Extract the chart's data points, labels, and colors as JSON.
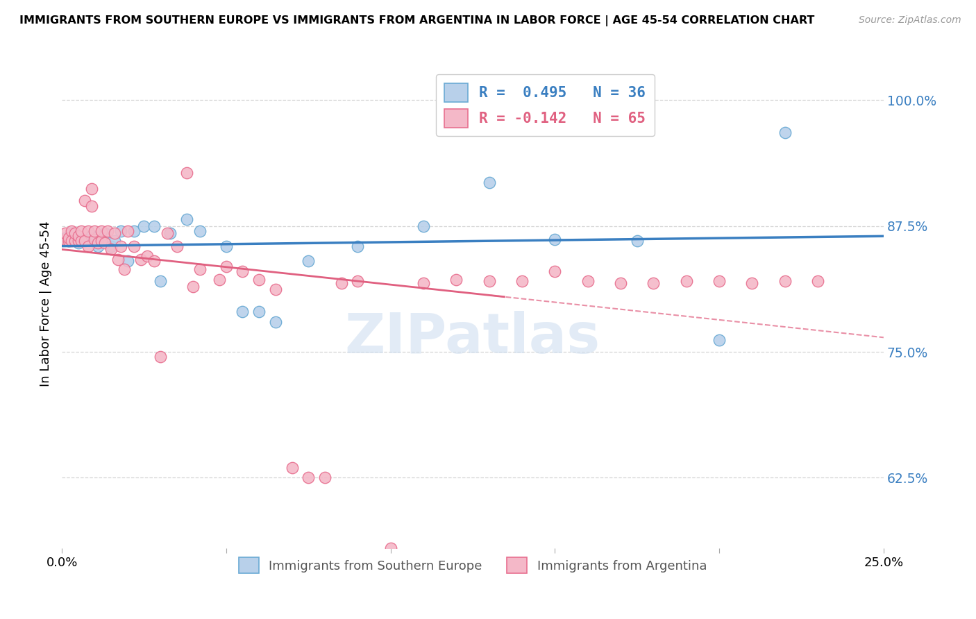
{
  "title": "IMMIGRANTS FROM SOUTHERN EUROPE VS IMMIGRANTS FROM ARGENTINA IN LABOR FORCE | AGE 45-54 CORRELATION CHART",
  "source": "Source: ZipAtlas.com",
  "ylabel": "In Labor Force | Age 45-54",
  "xlim": [
    0.0,
    0.25
  ],
  "ylim": [
    0.555,
    1.04
  ],
  "yticks": [
    0.625,
    0.75,
    0.875,
    1.0
  ],
  "ytick_labels": [
    "62.5%",
    "75.0%",
    "87.5%",
    "100.0%"
  ],
  "xticks": [
    0.0,
    0.05,
    0.1,
    0.15,
    0.2,
    0.25
  ],
  "xtick_labels": [
    "0.0%",
    "",
    "",
    "",
    "",
    "25.0%"
  ],
  "legend_blue_R": "R =  0.495",
  "legend_blue_N": "N = 36",
  "legend_pink_R": "R = -0.142",
  "legend_pink_N": "N = 65",
  "blue_fill_color": "#b8d0ea",
  "pink_fill_color": "#f4b8c8",
  "blue_edge_color": "#6aaad4",
  "pink_edge_color": "#e87090",
  "blue_line_color": "#3a7fc1",
  "pink_line_color": "#e06080",
  "watermark_color": "#d0dff0",
  "blue_scatter_x": [
    0.001,
    0.002,
    0.003,
    0.004,
    0.005,
    0.006,
    0.007,
    0.008,
    0.009,
    0.01,
    0.011,
    0.012,
    0.013,
    0.015,
    0.016,
    0.018,
    0.02,
    0.022,
    0.025,
    0.028,
    0.03,
    0.033,
    0.038,
    0.042,
    0.05,
    0.055,
    0.06,
    0.065,
    0.075,
    0.09,
    0.11,
    0.13,
    0.15,
    0.175,
    0.2,
    0.22
  ],
  "blue_scatter_y": [
    0.863,
    0.86,
    0.868,
    0.862,
    0.858,
    0.862,
    0.86,
    0.862,
    0.865,
    0.863,
    0.855,
    0.865,
    0.868,
    0.855,
    0.86,
    0.87,
    0.84,
    0.87,
    0.875,
    0.875,
    0.82,
    0.868,
    0.882,
    0.87,
    0.855,
    0.79,
    0.79,
    0.78,
    0.84,
    0.855,
    0.875,
    0.918,
    0.862,
    0.86,
    0.762,
    0.968
  ],
  "pink_scatter_x": [
    0.001,
    0.001,
    0.002,
    0.002,
    0.003,
    0.003,
    0.004,
    0.004,
    0.005,
    0.005,
    0.006,
    0.006,
    0.007,
    0.007,
    0.008,
    0.008,
    0.009,
    0.009,
    0.01,
    0.01,
    0.011,
    0.012,
    0.012,
    0.013,
    0.014,
    0.015,
    0.016,
    0.017,
    0.018,
    0.019,
    0.02,
    0.022,
    0.024,
    0.026,
    0.028,
    0.03,
    0.032,
    0.035,
    0.038,
    0.04,
    0.042,
    0.048,
    0.05,
    0.055,
    0.06,
    0.065,
    0.07,
    0.075,
    0.08,
    0.085,
    0.09,
    0.1,
    0.11,
    0.12,
    0.13,
    0.14,
    0.15,
    0.16,
    0.17,
    0.18,
    0.19,
    0.2,
    0.21,
    0.22,
    0.23
  ],
  "pink_scatter_y": [
    0.862,
    0.868,
    0.86,
    0.863,
    0.87,
    0.86,
    0.86,
    0.868,
    0.86,
    0.865,
    0.86,
    0.87,
    0.86,
    0.9,
    0.855,
    0.87,
    0.912,
    0.895,
    0.862,
    0.87,
    0.858,
    0.86,
    0.87,
    0.858,
    0.87,
    0.852,
    0.868,
    0.842,
    0.855,
    0.832,
    0.87,
    0.855,
    0.842,
    0.845,
    0.84,
    0.745,
    0.868,
    0.855,
    0.928,
    0.815,
    0.832,
    0.822,
    0.835,
    0.83,
    0.822,
    0.812,
    0.635,
    0.625,
    0.625,
    0.818,
    0.82,
    0.555,
    0.818,
    0.822,
    0.82,
    0.82,
    0.83,
    0.82,
    0.818,
    0.818,
    0.82,
    0.82,
    0.818,
    0.82,
    0.82
  ]
}
